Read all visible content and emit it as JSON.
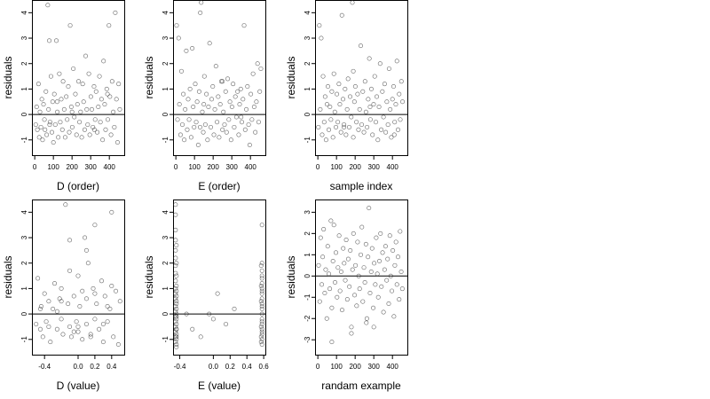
{
  "chart_data": [
    {
      "type": "scatter",
      "xlabel": "D (order)",
      "ylabel": "residuals",
      "xlim": [
        -15,
        480
      ],
      "ylim": [
        -1.6,
        4.5
      ],
      "x_ticks": [
        0,
        100,
        200,
        300,
        400
      ],
      "y_ticks": [
        -1,
        0,
        1,
        2,
        3,
        4
      ],
      "reference_line_y": 0,
      "marker": "open-circle",
      "x": [
        5,
        10,
        14,
        20,
        24,
        28,
        33,
        38,
        42,
        47,
        52,
        55,
        60,
        64,
        70,
        74,
        78,
        82,
        87,
        92,
        96,
        100,
        105,
        110,
        116,
        121,
        126,
        132,
        137,
        142,
        148,
        152,
        158,
        163,
        169,
        174,
        180,
        185,
        190,
        196,
        201,
        207,
        212,
        218,
        224,
        229,
        235,
        240,
        246,
        252,
        257,
        262,
        268,
        273,
        279,
        284,
        290,
        295,
        301,
        306,
        312,
        318,
        324,
        329,
        335,
        341,
        347,
        352,
        358,
        364,
        369,
        375,
        380,
        386,
        392,
        398,
        403,
        409,
        415,
        421,
        427,
        432,
        438,
        444,
        450,
        456,
        80,
        120,
        200,
        320,
        390
      ],
      "y": [
        -0.4,
        0.3,
        -0.6,
        1.2,
        -0.9,
        0.1,
        -0.5,
        0.6,
        -1.0,
        0.4,
        -0.2,
        -0.6,
        0.9,
        -0.8,
        4.3,
        0.2,
        2.9,
        -0.3,
        1.5,
        -0.7,
        0.5,
        -1.1,
        0.8,
        -0.4,
        2.9,
        0.1,
        -0.9,
        1.6,
        -0.3,
        0.6,
        -0.6,
        1.3,
        0.2,
        -0.9,
        0.7,
        -0.2,
        1.1,
        -0.7,
        3.5,
        0.3,
        -0.5,
        1.8,
        -0.1,
        0.8,
        -0.8,
        0.4,
        1.3,
        -0.3,
        0.1,
        -0.9,
        1.2,
        0.5,
        -0.6,
        2.3,
        0.2,
        -0.4,
        1.6,
        -0.8,
        0.7,
        0.2,
        -0.5,
        1.1,
        -0.2,
        0.9,
        -0.7,
        0.3,
        1.5,
        -0.3,
        0.6,
        -1.0,
        2.1,
        0.4,
        -0.6,
        1.0,
        -0.2,
        3.5,
        0.7,
        -0.8,
        1.3,
        0.1,
        -0.5,
        4.0,
        0.6,
        -1.1,
        1.2,
        0.2,
        -0.4,
        0.5,
        0.1,
        -0.6,
        0.8
      ]
    },
    {
      "type": "scatter",
      "xlabel": "E (order)",
      "ylabel": "residuals",
      "xlim": [
        -15,
        480
      ],
      "ylim": [
        -1.6,
        4.5
      ],
      "x_ticks": [
        0,
        100,
        200,
        300,
        400
      ],
      "y_ticks": [
        -1,
        0,
        1,
        2,
        3,
        4
      ],
      "reference_line_y": 0,
      "marker": "open-circle",
      "x": [
        4,
        9,
        15,
        19,
        25,
        30,
        35,
        40,
        45,
        50,
        56,
        61,
        66,
        71,
        76,
        82,
        88,
        93,
        98,
        104,
        109,
        114,
        120,
        125,
        131,
        136,
        142,
        147,
        153,
        158,
        164,
        170,
        175,
        181,
        187,
        192,
        198,
        204,
        209,
        215,
        221,
        227,
        232,
        238,
        244,
        250,
        255,
        261,
        267,
        272,
        278,
        284,
        290,
        296,
        301,
        307,
        313,
        319,
        325,
        331,
        337,
        342,
        348,
        354,
        360,
        366,
        372,
        378,
        384,
        390,
        396,
        402,
        408,
        414,
        420,
        426,
        432,
        438,
        444,
        450,
        456,
        130,
        150,
        250,
        350
      ],
      "y": [
        3.5,
        -0.2,
        3.0,
        0.4,
        -0.8,
        1.7,
        -0.4,
        0.8,
        -1.0,
        0.2,
        2.5,
        -0.6,
        0.6,
        -0.2,
        1.0,
        -0.9,
        2.6,
        0.3,
        -0.5,
        1.2,
        -0.3,
        0.5,
        -1.2,
        0.9,
        4.0,
        4.4,
        0.1,
        -0.7,
        1.5,
        -0.4,
        0.8,
        -1.0,
        0.3,
        2.8,
        -0.5,
        0.6,
        1.1,
        -0.8,
        0.2,
        1.9,
        -0.3,
        0.7,
        -0.9,
        0.4,
        1.3,
        -0.6,
        0.1,
        -0.4,
        0.9,
        -0.7,
        1.4,
        -0.2,
        0.5,
        -1.0,
        0.3,
        1.2,
        -0.5,
        0.7,
        -0.1,
        0.9,
        -0.8,
        0.4,
        1.0,
        -0.3,
        0.6,
        3.5,
        -0.6,
        0.2,
        1.1,
        -0.4,
        -1.2,
        0.8,
        -0.2,
        1.6,
        0.3,
        -0.7,
        0.5,
        2.0,
        -0.3,
        0.9,
        1.8,
        -0.5,
        0.4,
        1.3,
        -0.1
      ]
    },
    {
      "type": "scatter",
      "xlabel": "sample index",
      "ylabel": "residuals",
      "xlim": [
        -15,
        480
      ],
      "ylim": [
        -1.6,
        4.5
      ],
      "x_ticks": [
        0,
        100,
        200,
        300,
        400
      ],
      "y_ticks": [
        -1,
        0,
        1,
        2,
        3,
        4
      ],
      "reference_line_y": 0,
      "marker": "open-circle",
      "x": [
        3,
        8,
        13,
        18,
        23,
        28,
        34,
        39,
        44,
        49,
        54,
        59,
        65,
        70,
        75,
        81,
        86,
        91,
        97,
        102,
        107,
        113,
        118,
        124,
        129,
        135,
        140,
        146,
        151,
        157,
        162,
        168,
        173,
        179,
        185,
        190,
        196,
        201,
        207,
        213,
        218,
        224,
        230,
        235,
        241,
        247,
        253,
        258,
        264,
        270,
        276,
        282,
        287,
        293,
        299,
        305,
        311,
        316,
        322,
        328,
        334,
        340,
        346,
        352,
        358,
        364,
        370,
        376,
        382,
        388,
        394,
        400,
        406,
        412,
        418,
        424,
        430,
        436,
        442,
        448,
        454,
        140,
        190,
        280,
        410
      ],
      "y": [
        -0.5,
        3.5,
        0.2,
        3.0,
        -0.8,
        1.5,
        -0.3,
        0.7,
        -1.0,
        0.4,
        1.1,
        -0.6,
        0.3,
        -0.2,
        0.9,
        -0.9,
        1.6,
        0.1,
        -0.5,
        0.8,
        -0.3,
        1.2,
        0.4,
        -0.7,
        3.9,
        0.6,
        -0.4,
        1.0,
        -0.8,
        0.2,
        1.4,
        -0.5,
        0.7,
        -0.1,
        4.4,
        -0.9,
        0.5,
        1.1,
        -0.3,
        0.8,
        -0.6,
        0.2,
        2.7,
        -0.4,
        0.9,
        -0.7,
        1.3,
        0.1,
        -0.5,
        0.6,
        2.2,
        -0.2,
        1.0,
        -0.8,
        0.4,
        1.5,
        -0.3,
        0.7,
        -1.0,
        0.3,
        2.0,
        -0.6,
        0.9,
        -0.1,
        1.2,
        -0.7,
        0.5,
        -0.4,
        1.8,
        0.2,
        -0.9,
        0.6,
        1.1,
        -0.3,
        0.4,
        2.1,
        -0.6,
        0.8,
        -0.2,
        1.3,
        0.5,
        -0.5,
        1.7,
        0.3,
        -0.8
      ]
    },
    {
      "type": "scatter",
      "xlabel": "D (value)",
      "ylabel": "residuals",
      "xlim": [
        -0.55,
        0.55
      ],
      "ylim": [
        -1.6,
        4.5
      ],
      "x_ticks": [
        -0.4,
        0.0,
        0.2,
        0.4
      ],
      "x_tick_labels": [
        "-0.4",
        "0.0",
        "0.2",
        "0.4"
      ],
      "y_ticks": [
        -1,
        0,
        1,
        2,
        3,
        4
      ],
      "reference_line_y": 0,
      "marker": "open-circle",
      "x": [
        -0.5,
        -0.48,
        -0.45,
        -0.44,
        -0.42,
        -0.4,
        -0.38,
        -0.35,
        -0.33,
        -0.3,
        -0.28,
        -0.25,
        -0.22,
        -0.2,
        -0.2,
        -0.18,
        -0.15,
        -0.12,
        -0.1,
        -0.1,
        -0.08,
        -0.05,
        -0.02,
        0.0,
        0.0,
        0.02,
        0.05,
        0.08,
        0.1,
        0.1,
        0.12,
        0.15,
        0.18,
        0.2,
        0.2,
        0.22,
        0.25,
        0.28,
        0.3,
        0.32,
        0.35,
        0.38,
        0.4,
        0.42,
        0.45,
        0.48,
        0.5,
        -0.35,
        -0.2,
        -0.1,
        0.0,
        0.1,
        0.2,
        0.3,
        0.4,
        -0.45,
        -0.05,
        0.15,
        0.35,
        -0.25,
        0.05
      ],
      "y": [
        -0.4,
        1.4,
        -0.6,
        0.3,
        -0.9,
        0.8,
        -0.3,
        0.5,
        -1.1,
        0.2,
        1.2,
        -0.6,
        0.6,
        -0.2,
        1.0,
        -0.8,
        4.3,
        0.4,
        -0.5,
        2.9,
        -0.9,
        0.7,
        -0.3,
        1.5,
        -0.7,
        0.3,
        -1.0,
        3.0,
        0.6,
        -0.4,
        2.0,
        -0.8,
        1.0,
        -0.2,
        3.5,
        0.4,
        -0.6,
        1.3,
        -1.1,
        0.7,
        -0.3,
        0.2,
        4.0,
        -0.9,
        0.9,
        -1.2,
        0.5,
        -0.5,
        0.5,
        1.7,
        -0.5,
        2.5,
        0.8,
        -0.4,
        1.1,
        0.2,
        -0.7,
        -0.9,
        0.3,
        0.1,
        0.9
      ]
    },
    {
      "type": "scatter",
      "xlabel": "E (value)",
      "ylabel": "residuals",
      "xlim": [
        -0.48,
        0.62
      ],
      "ylim": [
        -1.6,
        4.5
      ],
      "x_ticks": [
        -0.4,
        0.0,
        0.2,
        0.4,
        0.6
      ],
      "x_tick_labels": [
        "-0.4",
        "0.0",
        "0.2",
        "0.4",
        "0.6"
      ],
      "y_ticks": [
        -1,
        0,
        1,
        2,
        3,
        4
      ],
      "reference_line_y": 0,
      "marker": "open-circle",
      "x": [
        -0.45,
        -0.45,
        -0.45,
        -0.45,
        -0.45,
        -0.45,
        -0.45,
        -0.45,
        -0.45,
        -0.45,
        -0.45,
        -0.45,
        -0.45,
        -0.45,
        -0.45,
        -0.45,
        -0.45,
        -0.45,
        -0.45,
        -0.45,
        -0.44,
        -0.44,
        -0.44,
        -0.44,
        -0.44,
        -0.44,
        -0.44,
        -0.44,
        -0.44,
        -0.44,
        -0.44,
        -0.44,
        -0.44,
        -0.44,
        -0.44,
        -0.44,
        -0.44,
        -0.44,
        -0.44,
        -0.44,
        0.58,
        0.58,
        0.58,
        0.58,
        0.58,
        0.58,
        0.58,
        0.58,
        0.58,
        0.58,
        0.58,
        0.58,
        0.58,
        0.58,
        0.58,
        0.58,
        0.58,
        0.58,
        0.58,
        0.58,
        0.58,
        0.58,
        0.57,
        0.57,
        0.57,
        0.57,
        0.57,
        0.57,
        -0.32,
        -0.25,
        -0.15,
        -0.05,
        0.0,
        0.05,
        0.15,
        0.25
      ],
      "y": [
        4.3,
        3.9,
        3.3,
        2.9,
        2.5,
        2.2,
        1.9,
        1.6,
        1.3,
        1.0,
        0.8,
        0.6,
        0.3,
        0.1,
        -0.1,
        -0.3,
        -0.5,
        -0.7,
        -0.9,
        -1.1,
        2.7,
        2.0,
        1.5,
        1.1,
        0.9,
        0.7,
        0.4,
        0.2,
        0.0,
        -0.2,
        -0.4,
        -0.6,
        -0.8,
        -1.0,
        -1.2,
        -1.3,
        0.5,
        -0.1,
        -0.6,
        -0.9,
        3.5,
        2.0,
        1.7,
        1.4,
        1.2,
        1.0,
        0.8,
        0.6,
        0.4,
        0.2,
        0.0,
        -0.2,
        -0.4,
        -0.6,
        -0.8,
        -1.0,
        -1.2,
        1.5,
        0.9,
        0.3,
        -0.3,
        -0.7,
        1.9,
        1.1,
        0.5,
        -0.5,
        -0.9,
        -1.1,
        0.0,
        -0.6,
        -0.9,
        0.0,
        -0.2,
        0.8,
        -0.4,
        0.2
      ]
    },
    {
      "type": "scatter",
      "xlabel": "randam example",
      "ylabel": "residuals",
      "xlim": [
        -15,
        480
      ],
      "ylim": [
        -3.7,
        3.6
      ],
      "x_ticks": [
        0,
        100,
        200,
        300,
        400
      ],
      "y_ticks": [
        -3,
        -2,
        -1,
        0,
        1,
        2,
        3
      ],
      "reference_line_y": 0,
      "marker": "open-circle",
      "x": [
        4,
        10,
        15,
        21,
        26,
        31,
        37,
        42,
        48,
        53,
        59,
        64,
        70,
        75,
        81,
        86,
        92,
        97,
        103,
        108,
        114,
        119,
        125,
        130,
        136,
        141,
        147,
        152,
        158,
        163,
        169,
        174,
        180,
        186,
        191,
        197,
        202,
        208,
        213,
        219,
        224,
        230,
        236,
        241,
        247,
        252,
        258,
        263,
        269,
        274,
        280,
        286,
        291,
        297,
        302,
        308,
        313,
        319,
        324,
        330,
        336,
        341,
        347,
        352,
        358,
        363,
        369,
        374,
        380,
        386,
        391,
        397,
        402,
        408,
        413,
        419,
        424,
        430,
        436,
        441,
        447,
        453,
        75,
        180,
        260,
        300
      ],
      "y": [
        0.5,
        -1.2,
        1.8,
        -0.4,
        0.9,
        2.2,
        -0.8,
        0.3,
        -2.0,
        1.4,
        0.1,
        -0.6,
        2.6,
        -1.5,
        0.7,
        2.4,
        -0.3,
        1.1,
        -1.0,
        0.4,
        1.9,
        -0.7,
        0.2,
        -1.6,
        1.3,
        0.6,
        -0.2,
        1.7,
        -1.1,
        0.8,
        -0.5,
        1.2,
        -2.4,
        0.3,
        2.0,
        -0.9,
        0.5,
        -1.4,
        1.6,
        0.0,
        -0.6,
        1.0,
        2.3,
        -1.2,
        0.4,
        -0.3,
        1.5,
        -2.0,
        0.9,
        3.2,
        -0.8,
        0.2,
        1.3,
        -1.5,
        0.6,
        -0.4,
        1.8,
        0.1,
        -1.0,
        0.7,
        2.0,
        -0.5,
        1.1,
        -1.7,
        0.3,
        1.4,
        -0.2,
        0.8,
        -1.3,
        1.9,
        0.0,
        -0.7,
        1.2,
        -1.9,
        0.5,
        1.6,
        -0.4,
        0.9,
        -1.1,
        2.1,
        0.2,
        -0.6,
        -3.1,
        -2.7,
        -2.2,
        -2.4
      ]
    }
  ]
}
